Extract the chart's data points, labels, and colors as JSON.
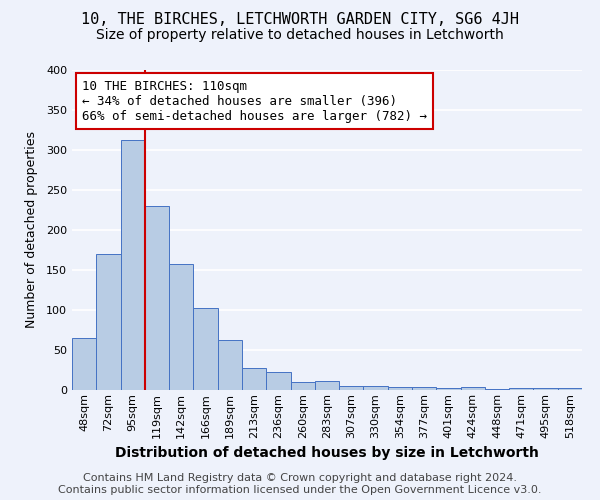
{
  "title": "10, THE BIRCHES, LETCHWORTH GARDEN CITY, SG6 4JH",
  "subtitle": "Size of property relative to detached houses in Letchworth",
  "xlabel": "Distribution of detached houses by size in Letchworth",
  "ylabel": "Number of detached properties",
  "categories": [
    "48sqm",
    "72sqm",
    "95sqm",
    "119sqm",
    "142sqm",
    "166sqm",
    "189sqm",
    "213sqm",
    "236sqm",
    "260sqm",
    "283sqm",
    "307sqm",
    "330sqm",
    "354sqm",
    "377sqm",
    "401sqm",
    "424sqm",
    "448sqm",
    "471sqm",
    "495sqm",
    "518sqm"
  ],
  "values": [
    65,
    170,
    313,
    230,
    157,
    102,
    63,
    27,
    22,
    10,
    11,
    5,
    5,
    4,
    4,
    3,
    4,
    1,
    2,
    3,
    3
  ],
  "bar_color": "#b8cce4",
  "bar_edge_color": "#4472c4",
  "background_color": "#eef2fb",
  "grid_color": "#ffffff",
  "annotation_line1": "10 THE BIRCHES: 110sqm",
  "annotation_line2": "← 34% of detached houses are smaller (396)",
  "annotation_line3": "66% of semi-detached houses are larger (782) →",
  "annotation_box_color": "#ffffff",
  "annotation_box_edge_color": "#cc0000",
  "vline_x_index": 2.5,
  "vline_color": "#cc0000",
  "footer_line1": "Contains HM Land Registry data © Crown copyright and database right 2024.",
  "footer_line2": "Contains public sector information licensed under the Open Government Licence v3.0.",
  "ylim": [
    0,
    400
  ],
  "yticks": [
    0,
    50,
    100,
    150,
    200,
    250,
    300,
    350,
    400
  ],
  "title_fontsize": 11,
  "subtitle_fontsize": 10,
  "xlabel_fontsize": 10,
  "ylabel_fontsize": 9,
  "tick_fontsize": 8,
  "footer_fontsize": 8,
  "annotation_fontsize": 9
}
